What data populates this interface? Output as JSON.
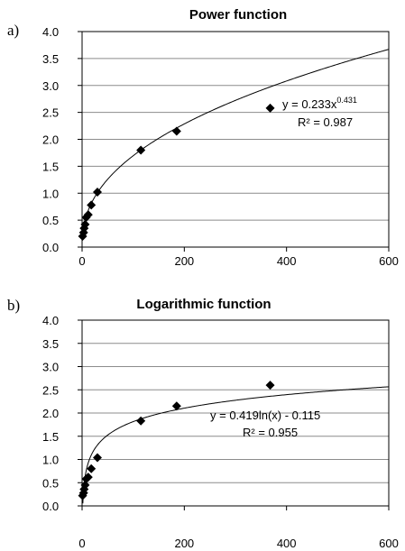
{
  "chart_data": [
    {
      "type": "scatter",
      "panel_label": "a)",
      "title": "Power function",
      "xlim": [
        0,
        600
      ],
      "ylim": [
        0,
        4.0
      ],
      "x_ticks": [
        "0",
        "200",
        "400",
        "600"
      ],
      "y_ticks": [
        "0.0",
        "0.5",
        "1.0",
        "1.5",
        "2.0",
        "2.5",
        "3.0",
        "3.5",
        "4.0"
      ],
      "grid": "horizontal",
      "points": [
        {
          "x": 1,
          "y": 0.2
        },
        {
          "x": 3,
          "y": 0.27
        },
        {
          "x": 4,
          "y": 0.35
        },
        {
          "x": 6,
          "y": 0.42
        },
        {
          "x": 8,
          "y": 0.55
        },
        {
          "x": 12,
          "y": 0.6
        },
        {
          "x": 18,
          "y": 0.78
        },
        {
          "x": 30,
          "y": 1.02
        },
        {
          "x": 115,
          "y": 1.8
        },
        {
          "x": 185,
          "y": 2.15
        },
        {
          "x": 368,
          "y": 2.58
        }
      ],
      "fit": {
        "model": "power",
        "a": 0.233,
        "b": 0.431
      },
      "equation": {
        "prefix": "y = 0.233x",
        "exponent": "0.431",
        "r2": "R² = 0.987"
      }
    },
    {
      "type": "scatter",
      "panel_label": "b)",
      "title": "Logarithmic function",
      "xlim": [
        0,
        600
      ],
      "ylim": [
        0,
        4.0
      ],
      "x_ticks": [
        "0",
        "200",
        "400",
        "600"
      ],
      "y_ticks": [
        "0.0",
        "0.5",
        "1.0",
        "1.5",
        "2.0",
        "2.5",
        "3.0",
        "3.5",
        "4.0"
      ],
      "grid": "horizontal",
      "points": [
        {
          "x": 1,
          "y": 0.22
        },
        {
          "x": 3,
          "y": 0.28
        },
        {
          "x": 4,
          "y": 0.36
        },
        {
          "x": 6,
          "y": 0.45
        },
        {
          "x": 8,
          "y": 0.58
        },
        {
          "x": 12,
          "y": 0.62
        },
        {
          "x": 18,
          "y": 0.8
        },
        {
          "x": 30,
          "y": 1.04
        },
        {
          "x": 115,
          "y": 1.83
        },
        {
          "x": 185,
          "y": 2.15
        },
        {
          "x": 368,
          "y": 2.6
        }
      ],
      "fit": {
        "model": "log",
        "a": 0.419,
        "b": -0.115
      },
      "equation": {
        "line1": "y = 0.419ln(x) - 0.115",
        "r2": "R² = 0.955"
      }
    }
  ]
}
